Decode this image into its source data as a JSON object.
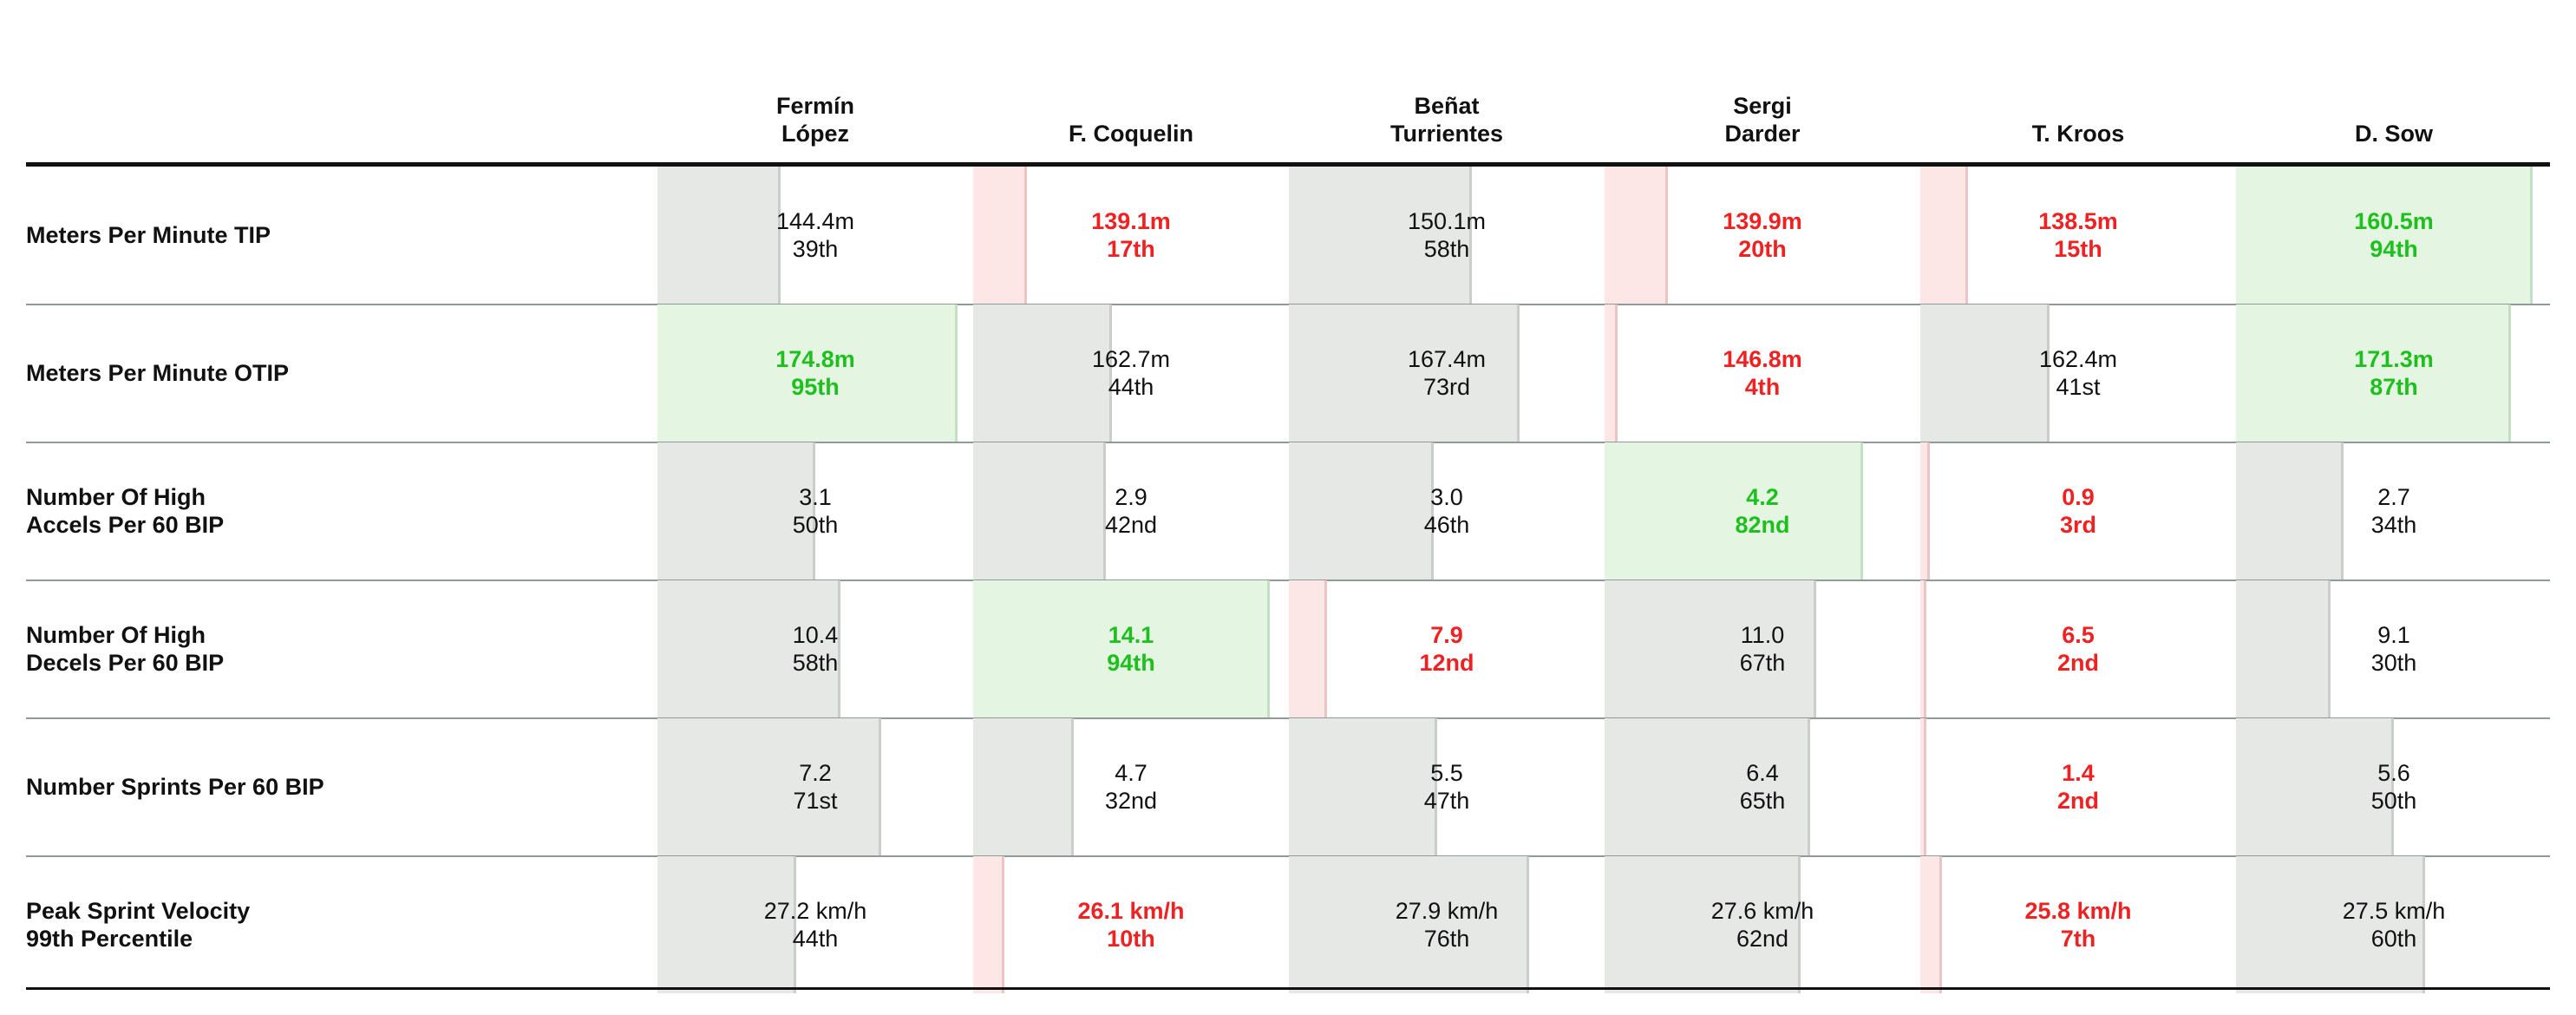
{
  "chart_data": {
    "type": "table",
    "columns": [
      "Fermín\nLópez",
      "F. Coquelin",
      "Beñat\nTurrientes",
      "Sergi\nDarder",
      "T. Kroos",
      "D. Sow"
    ],
    "rows": [
      {
        "metric": "Meters Per Minute TIP",
        "cells": [
          {
            "value": "144.4m",
            "rank": "39th",
            "percentile": 39
          },
          {
            "value": "139.1m",
            "rank": "17th",
            "percentile": 17
          },
          {
            "value": "150.1m",
            "rank": "58th",
            "percentile": 58
          },
          {
            "value": "139.9m",
            "rank": "20th",
            "percentile": 20
          },
          {
            "value": "138.5m",
            "rank": "15th",
            "percentile": 15
          },
          {
            "value": "160.5m",
            "rank": "94th",
            "percentile": 94
          }
        ]
      },
      {
        "metric": "Meters Per Minute OTIP",
        "cells": [
          {
            "value": "174.8m",
            "rank": "95th",
            "percentile": 95
          },
          {
            "value": "162.7m",
            "rank": "44th",
            "percentile": 44
          },
          {
            "value": "167.4m",
            "rank": "73rd",
            "percentile": 73
          },
          {
            "value": "146.8m",
            "rank": "4th",
            "percentile": 4
          },
          {
            "value": "162.4m",
            "rank": "41st",
            "percentile": 41
          },
          {
            "value": "171.3m",
            "rank": "87th",
            "percentile": 87
          }
        ]
      },
      {
        "metric": "Number Of High\nAccels Per 60 BIP",
        "cells": [
          {
            "value": "3.1",
            "rank": "50th",
            "percentile": 50
          },
          {
            "value": "2.9",
            "rank": "42nd",
            "percentile": 42
          },
          {
            "value": "3.0",
            "rank": "46th",
            "percentile": 46
          },
          {
            "value": "4.2",
            "rank": "82nd",
            "percentile": 82
          },
          {
            "value": "0.9",
            "rank": "3rd",
            "percentile": 3
          },
          {
            "value": "2.7",
            "rank": "34th",
            "percentile": 34
          }
        ]
      },
      {
        "metric": "Number Of High\nDecels Per 60 BIP",
        "cells": [
          {
            "value": "10.4",
            "rank": "58th",
            "percentile": 58
          },
          {
            "value": "14.1",
            "rank": "94th",
            "percentile": 94
          },
          {
            "value": "7.9",
            "rank": "12nd",
            "percentile": 12
          },
          {
            "value": "11.0",
            "rank": "67th",
            "percentile": 67
          },
          {
            "value": "6.5",
            "rank": "2nd",
            "percentile": 2
          },
          {
            "value": "9.1",
            "rank": "30th",
            "percentile": 30
          }
        ]
      },
      {
        "metric": "Number Sprints Per 60 BIP",
        "cells": [
          {
            "value": "7.2",
            "rank": "71st",
            "percentile": 71
          },
          {
            "value": "4.7",
            "rank": "32nd",
            "percentile": 32
          },
          {
            "value": "5.5",
            "rank": "47th",
            "percentile": 47
          },
          {
            "value": "6.4",
            "rank": "65th",
            "percentile": 65
          },
          {
            "value": "1.4",
            "rank": "2nd",
            "percentile": 2
          },
          {
            "value": "5.6",
            "rank": "50th",
            "percentile": 50
          }
        ]
      },
      {
        "metric": "Peak Sprint Velocity\n99th Percentile",
        "cells": [
          {
            "value": "27.2 km/h",
            "rank": "44th",
            "percentile": 44
          },
          {
            "value": "26.1 km/h",
            "rank": "10th",
            "percentile": 10
          },
          {
            "value": "27.9 km/h",
            "rank": "76th",
            "percentile": 76
          },
          {
            "value": "27.6 km/h",
            "rank": "62nd",
            "percentile": 62
          },
          {
            "value": "25.8 km/h",
            "rank": "7th",
            "percentile": 7
          },
          {
            "value": "27.5 km/h",
            "rank": "60th",
            "percentile": 60
          }
        ]
      }
    ],
    "colors": {
      "high": "#1fbf1f",
      "low": "#ee2222",
      "neutral": "#111111"
    },
    "thresholds": {
      "low_below": 30,
      "high_at_or_above": 80
    }
  }
}
